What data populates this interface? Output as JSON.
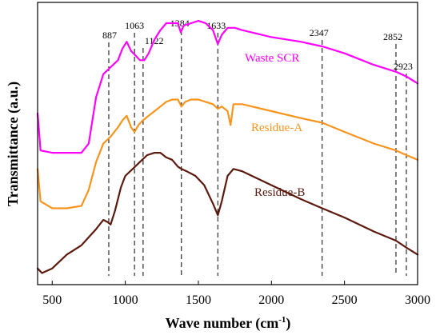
{
  "chart_data": {
    "type": "line",
    "xlabel": "Wave number (cm",
    "xlabel_sup": "-1",
    "xlabel_close": ")",
    "ylabel": "Transmittance (a.u.)",
    "xlim": [
      400,
      3000
    ],
    "xticks": [
      500,
      1000,
      1500,
      2000,
      2500,
      3000
    ],
    "xtick_labels": [
      "500",
      "1000",
      "1500",
      "2000",
      "2500",
      "3000"
    ],
    "y_tick_labels_shown": false,
    "grid": false,
    "peak_lines": [
      {
        "x": 887,
        "label": "887"
      },
      {
        "x": 1063,
        "label": "1063"
      },
      {
        "x": 1122,
        "label": "1122"
      },
      {
        "x": 1384,
        "label": "1384"
      },
      {
        "x": 1633,
        "label": "1633"
      },
      {
        "x": 2347,
        "label": "2347"
      },
      {
        "x": 2852,
        "label": "2852"
      },
      {
        "x": 2923,
        "label": "2923"
      }
    ],
    "series": [
      {
        "name": "Waste SCR",
        "color": "#ff00ff",
        "points": [
          [
            400,
            0.52
          ],
          [
            420,
            0.36
          ],
          [
            500,
            0.35
          ],
          [
            600,
            0.35
          ],
          [
            700,
            0.35
          ],
          [
            750,
            0.39
          ],
          [
            800,
            0.59
          ],
          [
            850,
            0.69
          ],
          [
            900,
            0.72
          ],
          [
            950,
            0.75
          ],
          [
            980,
            0.8
          ],
          [
            1010,
            0.83
          ],
          [
            1040,
            0.79
          ],
          [
            1070,
            0.77
          ],
          [
            1100,
            0.75
          ],
          [
            1130,
            0.75
          ],
          [
            1160,
            0.78
          ],
          [
            1200,
            0.84
          ],
          [
            1240,
            0.88
          ],
          [
            1280,
            0.91
          ],
          [
            1320,
            0.91
          ],
          [
            1360,
            0.91
          ],
          [
            1380,
            0.87
          ],
          [
            1400,
            0.9
          ],
          [
            1450,
            0.91
          ],
          [
            1500,
            0.92
          ],
          [
            1550,
            0.91
          ],
          [
            1600,
            0.88
          ],
          [
            1633,
            0.82
          ],
          [
            1660,
            0.86
          ],
          [
            1700,
            0.89
          ],
          [
            1750,
            0.89
          ],
          [
            1800,
            0.88
          ],
          [
            2000,
            0.85
          ],
          [
            2200,
            0.83
          ],
          [
            2347,
            0.81
          ],
          [
            2500,
            0.78
          ],
          [
            2700,
            0.73
          ],
          [
            2852,
            0.7
          ],
          [
            2923,
            0.68
          ],
          [
            3000,
            0.65
          ]
        ]
      },
      {
        "name": "Residue-A",
        "color": "#f7941d",
        "points": [
          [
            400,
            0.28
          ],
          [
            420,
            0.14
          ],
          [
            500,
            0.11
          ],
          [
            600,
            0.11
          ],
          [
            700,
            0.12
          ],
          [
            750,
            0.19
          ],
          [
            800,
            0.31
          ],
          [
            850,
            0.39
          ],
          [
            900,
            0.42
          ],
          [
            950,
            0.46
          ],
          [
            980,
            0.49
          ],
          [
            1010,
            0.51
          ],
          [
            1040,
            0.46
          ],
          [
            1063,
            0.44
          ],
          [
            1090,
            0.47
          ],
          [
            1120,
            0.49
          ],
          [
            1160,
            0.51
          ],
          [
            1200,
            0.53
          ],
          [
            1240,
            0.55
          ],
          [
            1280,
            0.57
          ],
          [
            1320,
            0.58
          ],
          [
            1360,
            0.58
          ],
          [
            1384,
            0.55
          ],
          [
            1410,
            0.57
          ],
          [
            1450,
            0.58
          ],
          [
            1500,
            0.58
          ],
          [
            1550,
            0.57
          ],
          [
            1600,
            0.56
          ],
          [
            1633,
            0.54
          ],
          [
            1660,
            0.55
          ],
          [
            1700,
            0.53
          ],
          [
            1720,
            0.47
          ],
          [
            1740,
            0.56
          ],
          [
            1800,
            0.56
          ],
          [
            2000,
            0.53
          ],
          [
            2200,
            0.5
          ],
          [
            2347,
            0.48
          ],
          [
            2500,
            0.44
          ],
          [
            2700,
            0.39
          ],
          [
            2852,
            0.36
          ],
          [
            2923,
            0.34
          ],
          [
            3000,
            0.32
          ]
        ]
      },
      {
        "name": "Residue-B",
        "color": "#5c1a0f",
        "points": [
          [
            400,
            -0.15
          ],
          [
            430,
            -0.17
          ],
          [
            500,
            -0.15
          ],
          [
            550,
            -0.12
          ],
          [
            600,
            -0.09
          ],
          [
            700,
            -0.05
          ],
          [
            800,
            0.02
          ],
          [
            850,
            0.06
          ],
          [
            880,
            0.05
          ],
          [
            900,
            0.04
          ],
          [
            930,
            0.1
          ],
          [
            970,
            0.2
          ],
          [
            1000,
            0.25
          ],
          [
            1050,
            0.28
          ],
          [
            1100,
            0.31
          ],
          [
            1150,
            0.34
          ],
          [
            1200,
            0.35
          ],
          [
            1240,
            0.35
          ],
          [
            1280,
            0.33
          ],
          [
            1320,
            0.32
          ],
          [
            1360,
            0.29
          ],
          [
            1384,
            0.28
          ],
          [
            1420,
            0.27
          ],
          [
            1480,
            0.25
          ],
          [
            1540,
            0.21
          ],
          [
            1600,
            0.13
          ],
          [
            1633,
            0.08
          ],
          [
            1660,
            0.14
          ],
          [
            1700,
            0.25
          ],
          [
            1740,
            0.28
          ],
          [
            1800,
            0.27
          ],
          [
            2000,
            0.21
          ],
          [
            2200,
            0.15
          ],
          [
            2347,
            0.11
          ],
          [
            2500,
            0.07
          ],
          [
            2700,
            0.01
          ],
          [
            2852,
            -0.03
          ],
          [
            2923,
            -0.06
          ],
          [
            3000,
            -0.09
          ]
        ]
      }
    ]
  }
}
